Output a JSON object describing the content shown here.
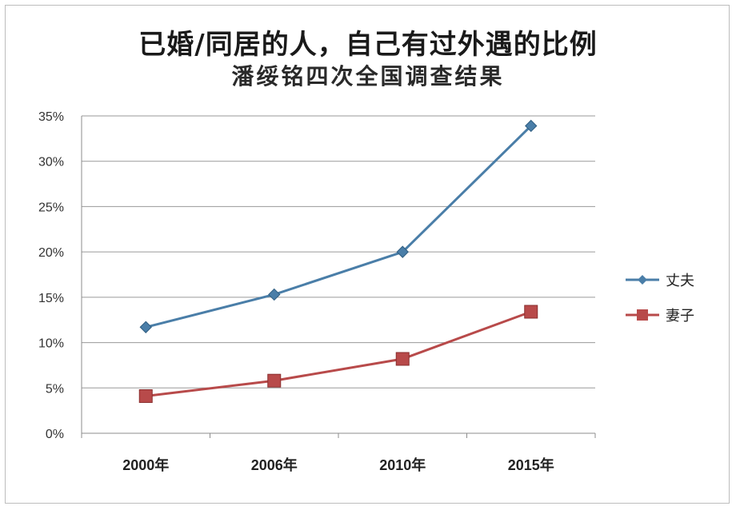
{
  "chart_data": {
    "type": "line",
    "title": "已婚/同居的人，自己有过外遇的比例",
    "subtitle": "潘绥铭四次全国调查结果",
    "categories": [
      "2000年",
      "2006年",
      "2010年",
      "2015年"
    ],
    "ylim": [
      0,
      35
    ],
    "yticks": [
      0,
      5,
      10,
      15,
      20,
      25,
      30,
      35
    ],
    "ytick_labels": [
      "0%",
      "5%",
      "10%",
      "15%",
      "20%",
      "25%",
      "30%",
      "35%"
    ],
    "grid": true,
    "legend_position": "right",
    "series": [
      {
        "name": "丈夫",
        "values": [
          11.7,
          15.3,
          20.0,
          33.9
        ],
        "color": "#4a7ea8",
        "marker": "diamond"
      },
      {
        "name": "妻子",
        "values": [
          4.1,
          5.8,
          8.2,
          13.4
        ],
        "color": "#b84a4a",
        "marker": "square"
      }
    ]
  }
}
